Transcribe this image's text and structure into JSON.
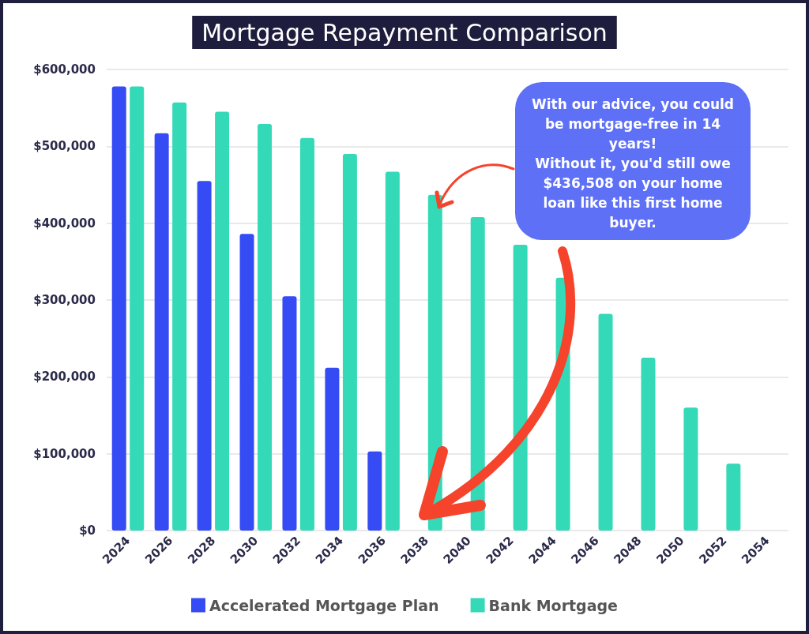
{
  "chart_data": {
    "type": "bar",
    "title": "Mortgage Repayment Comparison",
    "categories": [
      "2024",
      "2026",
      "2028",
      "2030",
      "2032",
      "2034",
      "2036",
      "2038",
      "2040",
      "2042",
      "2044",
      "2046",
      "2048",
      "2050",
      "2052",
      "2054"
    ],
    "series": [
      {
        "name": "Accelerated Mortgage Plan",
        "color": "#354cf5",
        "values": [
          578000,
          517000,
          455000,
          386000,
          305000,
          212000,
          103000,
          null,
          null,
          null,
          null,
          null,
          null,
          null,
          null,
          null
        ]
      },
      {
        "name": "Bank Mortgage",
        "color": "#34d9b8",
        "values": [
          578000,
          557000,
          545000,
          529000,
          511000,
          490000,
          467000,
          437000,
          408000,
          372000,
          329000,
          282000,
          225000,
          160000,
          87000,
          null
        ]
      }
    ],
    "ylim": [
      0,
      600000
    ],
    "yticks": [
      {
        "value": 0,
        "label": "$0"
      },
      {
        "value": 100000,
        "label": "$100,000"
      },
      {
        "value": 200000,
        "label": "$200,000"
      },
      {
        "value": 300000,
        "label": "$300,000"
      },
      {
        "value": 400000,
        "label": "$400,000"
      },
      {
        "value": 500000,
        "label": "$500,000"
      },
      {
        "value": 600000,
        "label": "$600,000"
      }
    ],
    "grid": "y",
    "legend": "bottom",
    "annotations": [
      "With our advice, you could be mortgage-free in 14 years!\nWithout it, you'd still owe $436,508 on your home loan like this first home buyer."
    ]
  }
}
